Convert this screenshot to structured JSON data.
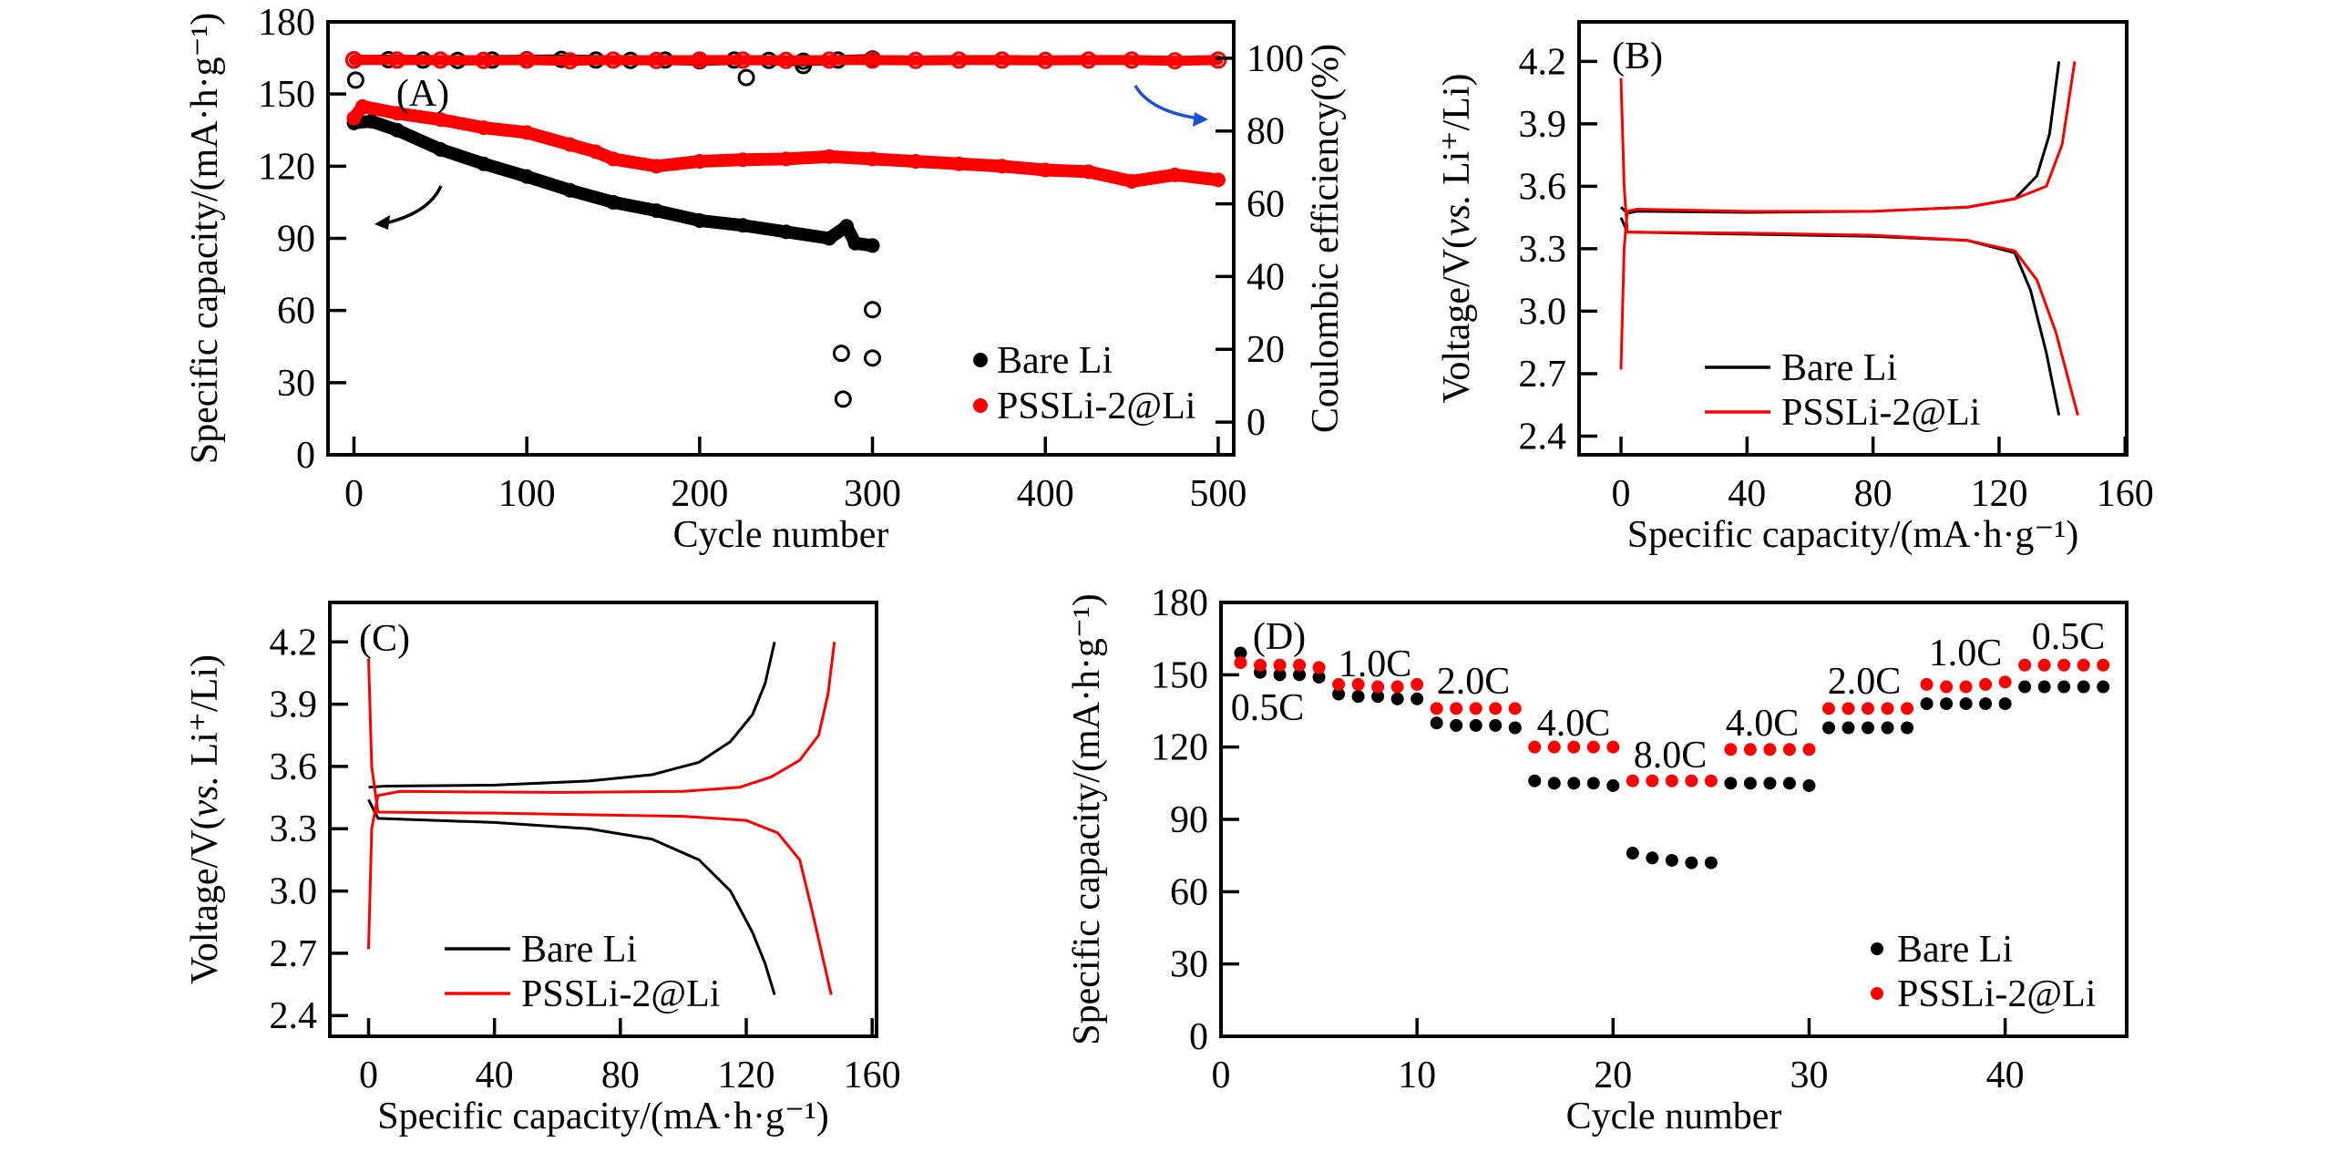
{
  "colors": {
    "bare": "#000000",
    "pssli": "#ff0000",
    "arrow_blue": "#1f4fd6",
    "frame": "#000000"
  },
  "chart_data": [
    {
      "panel": "(A)",
      "type": "scatter",
      "xlabel": "Cycle number",
      "ylabel": "Specific capacity/(mA·h·g⁻¹)",
      "y2label": "Coulombic efficiency(%)",
      "xlim": [
        -15,
        509
      ],
      "ylim": [
        0,
        180
      ],
      "y2lim": [
        -9,
        110
      ],
      "xticks": [
        "0",
        "100",
        "200",
        "300",
        "400",
        "500"
      ],
      "yticks": [
        "0",
        "30",
        "60",
        "90",
        "120",
        "150",
        "180"
      ],
      "y2ticks": [
        "0",
        "20",
        "40",
        "60",
        "80",
        "100"
      ],
      "grid": false,
      "legend": {
        "placement": "bottom-right",
        "entries": [
          "Bare Li",
          "PSSLi-2@Li"
        ]
      },
      "series": [
        {
          "name": "Bare Li",
          "kind": "capacity",
          "marker": "filled-circle",
          "color": "#000000",
          "x": [
            0,
            10,
            25,
            50,
            75,
            100,
            125,
            150,
            175,
            200,
            225,
            250,
            275,
            285,
            290,
            300
          ],
          "y": [
            138,
            138.7,
            135,
            127,
            121,
            115.7,
            110,
            105,
            101.5,
            97.4,
            95.4,
            92.7,
            90,
            95,
            88,
            87
          ]
        },
        {
          "name": "PSSLi-2@Li",
          "kind": "capacity",
          "marker": "filled-circle",
          "color": "#ff0000",
          "x": [
            0,
            5,
            25,
            50,
            75,
            100,
            125,
            140,
            150,
            175,
            200,
            225,
            250,
            275,
            300,
            325,
            350,
            375,
            400,
            425,
            450,
            475,
            500
          ],
          "y": [
            140,
            144.8,
            142,
            139.4,
            136,
            134,
            129,
            126,
            123,
            120,
            122,
            122.7,
            123,
            124,
            123,
            122,
            121,
            120,
            118.4,
            117.7,
            113.7,
            116.4,
            114.3
          ]
        },
        {
          "name": "Bare Li",
          "kind": "coulombic_efficiency",
          "marker": "hollow-circle",
          "color": "#000000",
          "x": [
            0,
            20,
            40,
            60,
            80,
            100,
            120,
            140,
            160,
            180,
            200,
            220,
            240,
            260,
            280,
            300
          ],
          "y": [
            99.5,
            99.6,
            99.5,
            99.4,
            99.5,
            99.6,
            99.7,
            99.5,
            99.4,
            99.5,
            99.3,
            99.5,
            99.4,
            99.2,
            99.5,
            99.8
          ],
          "outliers_x": [
            1,
            227,
            260,
            282,
            283,
            300,
            300
          ],
          "outliers_y": [
            94,
            94.7,
            98,
            18.9,
            6.3,
            30.9,
            17.6
          ]
        },
        {
          "name": "PSSLi-2@Li",
          "kind": "coulombic_efficiency",
          "marker": "hollow-circle",
          "color": "#ff0000",
          "x": [
            0,
            25,
            50,
            75,
            100,
            125,
            150,
            175,
            200,
            225,
            250,
            275,
            300,
            325,
            350,
            375,
            400,
            425,
            450,
            475,
            500
          ],
          "y": [
            99.6,
            99.5,
            99.5,
            99.4,
            99.5,
            99.3,
            99.5,
            99.4,
            99.5,
            99.5,
            99.4,
            99.5,
            99.5,
            99.4,
            99.5,
            99.5,
            99.4,
            99.5,
            99.5,
            99.3,
            99.5
          ]
        }
      ]
    },
    {
      "panel": "(B)",
      "type": "line",
      "xlabel": "Specific capacity/(mA·h·g⁻¹)",
      "ylabel_parts": [
        "Voltage/V(",
        "vs.",
        " Li⁺/Li)"
      ],
      "xlim": [
        -13.3,
        160.5
      ],
      "ylim": [
        2.31,
        4.39
      ],
      "xticks": [
        "0",
        "40",
        "80",
        "120",
        "160"
      ],
      "yticks": [
        "2.4",
        "2.7",
        "3.0",
        "3.3",
        "3.6",
        "3.9",
        "4.2"
      ],
      "grid": false,
      "legend": {
        "placement": "bottom-left",
        "entries": [
          "Bare Li",
          "PSSLi-2@Li"
        ]
      },
      "series": [
        {
          "name": "Bare Li",
          "curve": "charge",
          "color": "#000000",
          "points": [
            [
              0,
              3.5
            ],
            [
              2,
              3.47
            ],
            [
              5,
              3.48
            ],
            [
              40,
              3.475
            ],
            [
              80,
              3.48
            ],
            [
              110,
              3.5
            ],
            [
              125,
              3.54
            ],
            [
              132,
              3.65
            ],
            [
              136,
              3.85
            ],
            [
              139,
              4.2
            ]
          ]
        },
        {
          "name": "Bare Li",
          "curve": "discharge",
          "color": "#000000",
          "points": [
            [
              0,
              3.45
            ],
            [
              2,
              3.38
            ],
            [
              40,
              3.37
            ],
            [
              80,
              3.36
            ],
            [
              110,
              3.34
            ],
            [
              125,
              3.28
            ],
            [
              130,
              3.1
            ],
            [
              135,
              2.8
            ],
            [
              139,
              2.5
            ]
          ]
        },
        {
          "name": "PSSLi-2@Li",
          "curve": "charge",
          "color": "#ff0000",
          "points": [
            [
              0,
              2.72
            ],
            [
              1,
              3.3
            ],
            [
              2,
              3.48
            ],
            [
              5,
              3.49
            ],
            [
              40,
              3.48
            ],
            [
              80,
              3.48
            ],
            [
              110,
              3.5
            ],
            [
              125,
              3.54
            ],
            [
              135,
              3.6
            ],
            [
              140,
              3.8
            ],
            [
              144,
              4.2
            ]
          ]
        },
        {
          "name": "PSSLi-2@Li",
          "curve": "discharge",
          "color": "#ff0000",
          "points": [
            [
              0,
              4.12
            ],
            [
              1,
              3.6
            ],
            [
              2,
              3.38
            ],
            [
              40,
              3.375
            ],
            [
              80,
              3.365
            ],
            [
              110,
              3.34
            ],
            [
              125,
              3.29
            ],
            [
              132,
              3.15
            ],
            [
              138,
              2.9
            ],
            [
              145,
              2.5
            ]
          ]
        }
      ]
    },
    {
      "panel": "(C)",
      "type": "line",
      "xlabel": "Specific capacity/(mA·h·g⁻¹)",
      "ylabel_parts": [
        "Voltage/V(",
        "vs.",
        " Li⁺/Li)"
      ],
      "xlim": [
        -12.3,
        161.4
      ],
      "ylim": [
        2.3,
        4.39
      ],
      "xticks": [
        "0",
        "40",
        "80",
        "120",
        "160"
      ],
      "yticks": [
        "2.4",
        "2.7",
        "3.0",
        "3.3",
        "3.6",
        "3.9",
        "4.2"
      ],
      "grid": false,
      "legend": {
        "placement": "bottom-left",
        "entries": [
          "Bare Li",
          "PSSLi-2@Li"
        ]
      },
      "series": [
        {
          "name": "Bare Li",
          "curve": "charge",
          "color": "#000000",
          "points": [
            [
              0,
              3.5
            ],
            [
              5,
              3.505
            ],
            [
              40,
              3.51
            ],
            [
              70,
              3.53
            ],
            [
              90,
              3.56
            ],
            [
              105,
              3.62
            ],
            [
              115,
              3.72
            ],
            [
              122,
              3.85
            ],
            [
              126,
              4.0
            ],
            [
              129,
              4.2
            ]
          ]
        },
        {
          "name": "Bare Li",
          "curve": "discharge",
          "color": "#000000",
          "points": [
            [
              0,
              3.44
            ],
            [
              3,
              3.35
            ],
            [
              40,
              3.33
            ],
            [
              70,
              3.3
            ],
            [
              90,
              3.25
            ],
            [
              105,
              3.15
            ],
            [
              115,
              3.0
            ],
            [
              122,
              2.8
            ],
            [
              126,
              2.65
            ],
            [
              129,
              2.5
            ]
          ]
        },
        {
          "name": "PSSLi-2@Li",
          "curve": "charge",
          "color": "#ff0000",
          "points": [
            [
              0,
              2.72
            ],
            [
              1,
              3.3
            ],
            [
              3,
              3.46
            ],
            [
              10,
              3.48
            ],
            [
              60,
              3.475
            ],
            [
              100,
              3.48
            ],
            [
              118,
              3.5
            ],
            [
              128,
              3.55
            ],
            [
              137,
              3.63
            ],
            [
              143,
              3.75
            ],
            [
              146,
              3.95
            ],
            [
              148,
              4.2
            ]
          ]
        },
        {
          "name": "PSSLi-2@Li",
          "curve": "discharge",
          "color": "#ff0000",
          "points": [
            [
              0,
              4.12
            ],
            [
              1,
              3.6
            ],
            [
              3,
              3.38
            ],
            [
              40,
              3.375
            ],
            [
              100,
              3.36
            ],
            [
              120,
              3.34
            ],
            [
              130,
              3.28
            ],
            [
              137,
              3.15
            ],
            [
              141,
              2.9
            ],
            [
              144,
              2.7
            ],
            [
              147,
              2.5
            ]
          ]
        }
      ]
    },
    {
      "panel": "(D)",
      "type": "scatter",
      "xlabel": "Cycle number",
      "ylabel": "Specific capacity/(mA·h·g⁻¹)",
      "xlim": [
        0,
        46.2
      ],
      "ylim": [
        0,
        180
      ],
      "xticks": [
        "0",
        "10",
        "20",
        "30",
        "40"
      ],
      "yticks": [
        "0",
        "30",
        "60",
        "90",
        "120",
        "150",
        "180"
      ],
      "grid": false,
      "legend": {
        "placement": "bottom-right",
        "entries": [
          "Bare Li",
          "PSSLi-2@Li"
        ]
      },
      "rate_labels": [
        "0.5C",
        "1.0C",
        "2.0C",
        "4.0C",
        "8.0C",
        "4.0C",
        "2.0C",
        "1.0C",
        "0.5C"
      ],
      "x": [
        1,
        2,
        3,
        4,
        5,
        6,
        7,
        8,
        9,
        10,
        11,
        12,
        13,
        14,
        15,
        16,
        17,
        18,
        19,
        20,
        21,
        22,
        23,
        24,
        25,
        26,
        27,
        28,
        29,
        30,
        31,
        32,
        33,
        34,
        35,
        36,
        37,
        38,
        39,
        40,
        41,
        42,
        43,
        44,
        45
      ],
      "series": [
        {
          "name": "Bare Li",
          "color": "#000000",
          "values": [
            159,
            151,
            150,
            150,
            149,
            142,
            141,
            141,
            140,
            140,
            130,
            129,
            129,
            129,
            128,
            106,
            105,
            105,
            105,
            104,
            76,
            74,
            73,
            72,
            72,
            105,
            105,
            105,
            105,
            104,
            128,
            128,
            128,
            128,
            128,
            138,
            138,
            138,
            138,
            138,
            145,
            145,
            145,
            145,
            145
          ]
        },
        {
          "name": "PSSLi-2@Li",
          "color": "#ff0000",
          "values": [
            155,
            154,
            154,
            154,
            153,
            146,
            146,
            145,
            145,
            146,
            136,
            136,
            136,
            136,
            136,
            120,
            120,
            120,
            120,
            120,
            106,
            106,
            106,
            106,
            106,
            119,
            119,
            119,
            119,
            119,
            136,
            136,
            136,
            136,
            136,
            146,
            145,
            145,
            146,
            147,
            154,
            154,
            154,
            154,
            154
          ]
        }
      ]
    }
  ]
}
